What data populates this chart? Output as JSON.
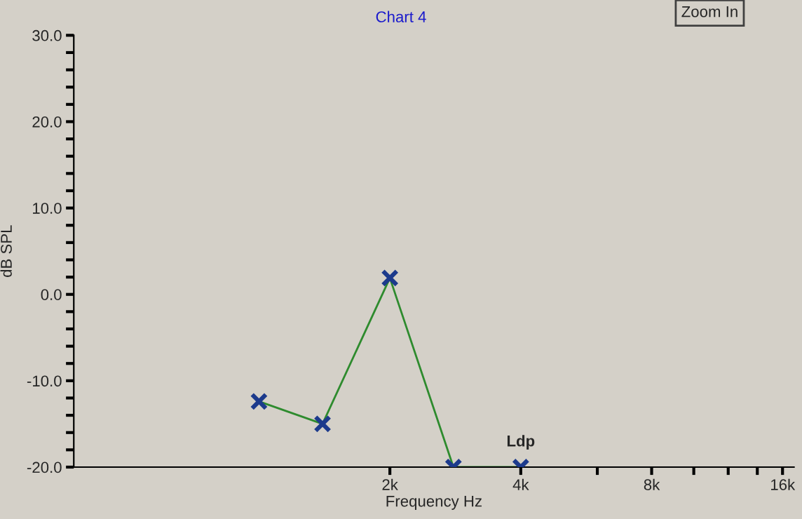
{
  "chart_data": {
    "type": "line",
    "title": "Chart 4",
    "xlabel": "Frequency Hz",
    "ylabel": "dB SPL",
    "log": "x",
    "x": [
      1000,
      1400,
      2000,
      2800,
      4000
    ],
    "series": [
      {
        "color": "#2e8b2e",
        "values": [
          -12.4,
          -15.0,
          1.9,
          -20,
          -20
        ]
      }
    ],
    "marker": "cross",
    "line_style": "solid",
    "grid": false,
    "legend": false,
    "xlim": [
      375,
      17000
    ],
    "xticks": [
      {
        "value": 2000,
        "label": "2k"
      },
      {
        "value": 4000,
        "label": "4k"
      },
      {
        "value": 6000,
        "label": null
      },
      {
        "value": 8000,
        "label": "8k"
      },
      {
        "value": 10000,
        "label": null
      },
      {
        "value": 12000,
        "label": null
      },
      {
        "value": 14000,
        "label": null
      },
      {
        "value": 16000,
        "label": "16k"
      }
    ],
    "ylim": [
      -20,
      30
    ],
    "yticks": [
      {
        "value": -20,
        "label": "-20.0"
      },
      {
        "value": -18,
        "label": null
      },
      {
        "value": -16,
        "label": null
      },
      {
        "value": -14,
        "label": null
      },
      {
        "value": -12,
        "label": null
      },
      {
        "value": -10,
        "label": "-10.0"
      },
      {
        "value": -8,
        "label": null
      },
      {
        "value": -6,
        "label": null
      },
      {
        "value": -4,
        "label": null
      },
      {
        "value": -2,
        "label": null
      },
      {
        "value": 0,
        "label": "0.0"
      },
      {
        "value": 2,
        "label": null
      },
      {
        "value": 4,
        "label": null
      },
      {
        "value": 6,
        "label": null
      },
      {
        "value": 8,
        "label": null
      },
      {
        "value": 10,
        "label": "10.0"
      },
      {
        "value": 12,
        "label": null
      },
      {
        "value": 14,
        "label": null
      },
      {
        "value": 16,
        "label": null
      },
      {
        "value": 18,
        "label": null
      },
      {
        "value": 20,
        "label": "20.0"
      },
      {
        "value": 22,
        "label": null
      },
      {
        "value": 24,
        "label": null
      },
      {
        "value": 26,
        "label": null
      },
      {
        "value": 28,
        "label": null
      },
      {
        "value": 30,
        "label": "30.0"
      }
    ],
    "annotations": [
      {
        "text": "Ldp",
        "x": 4000,
        "y": -20
      },
      "Zoom In"
    ]
  }
}
